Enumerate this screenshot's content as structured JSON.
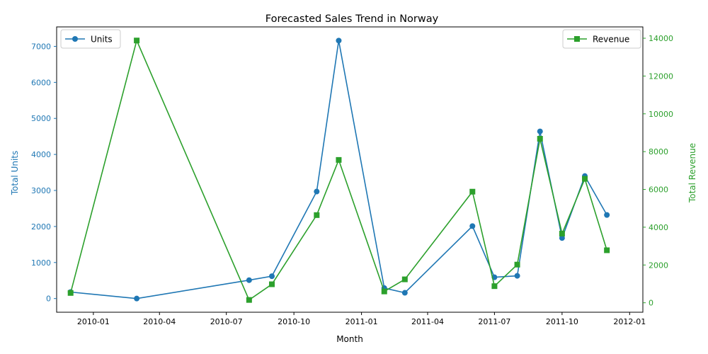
{
  "chart_data": {
    "type": "line",
    "title": "Forecasted Sales Trend in Norway",
    "xlabel": "Month",
    "ylabel_left": "Total Units",
    "ylabel_right": "Total Revenue",
    "x": [
      "2009-12-01",
      "2010-03-01",
      "2010-08-01",
      "2010-09-01",
      "2010-11-01",
      "2010-12-01",
      "2011-02-01",
      "2011-03-01",
      "2011-06-01",
      "2011-07-01",
      "2011-08-01",
      "2011-09-01",
      "2011-10-01",
      "2011-11-01",
      "2011-12-01"
    ],
    "x_ticks": [
      "2010-01",
      "2010-04",
      "2010-07",
      "2010-10",
      "2011-01",
      "2011-04",
      "2011-07",
      "2011-10",
      "2012-01"
    ],
    "xlim": [
      "2009-11-12",
      "2012-01-19"
    ],
    "ylim_left": [
      -380,
      7540
    ],
    "yticks_left": [
      0,
      1000,
      2000,
      3000,
      4000,
      5000,
      6000,
      7000
    ],
    "ylim_right": [
      -500,
      14600
    ],
    "yticks_right": [
      0,
      2000,
      4000,
      6000,
      8000,
      10000,
      12000,
      14000
    ],
    "series": [
      {
        "name": "Units",
        "axis": "left",
        "color": "#1f77b4",
        "marker": "circle",
        "values": [
          180,
          0,
          510,
          620,
          2970,
          7160,
          290,
          160,
          2010,
          590,
          630,
          4640,
          1680,
          3400,
          2320
        ]
      },
      {
        "name": "Revenue",
        "axis": "right",
        "color": "#2ca02c",
        "marker": "square",
        "values": [
          520,
          13880,
          150,
          980,
          4640,
          7560,
          600,
          1240,
          5880,
          880,
          2020,
          8680,
          3660,
          6560,
          2780
        ]
      }
    ],
    "legend_left": "top-left",
    "legend_right": "top-right",
    "grid": false
  }
}
